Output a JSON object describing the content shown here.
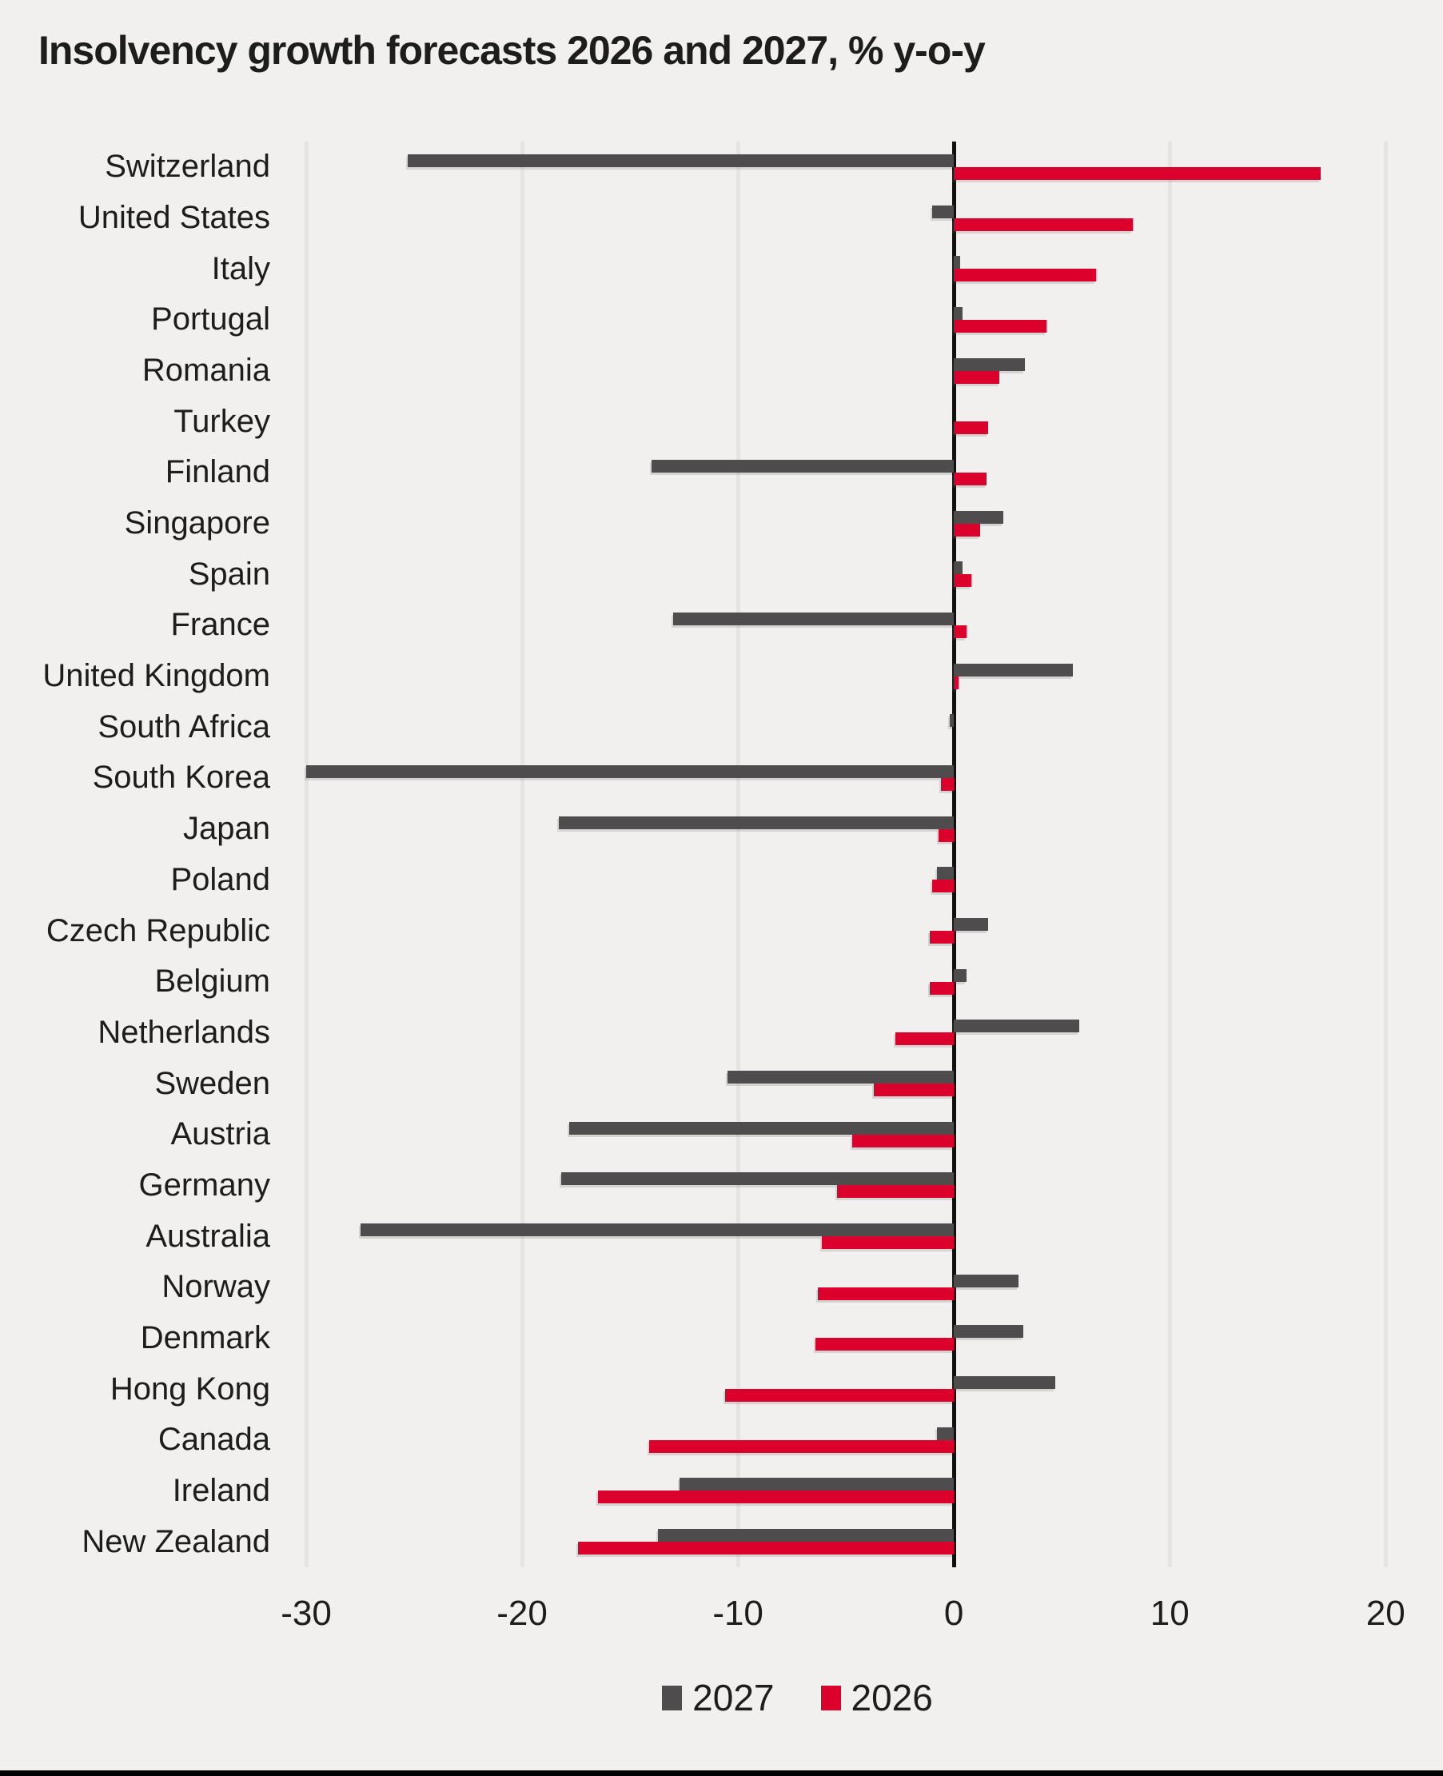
{
  "colors": {
    "background": "#f1f0ee",
    "text": "#1d1d1b",
    "grid": "#e5e4e2",
    "axis": "#111111",
    "bar_2027": "#4f4c4d",
    "bar_2026": "#dc002d",
    "bottom_bar": "#000000"
  },
  "legend": {
    "items": [
      {
        "label": "2027",
        "color": "#4f4c4d"
      },
      {
        "label": "2026",
        "color": "#dc002d"
      }
    ]
  },
  "chart_data": {
    "type": "bar",
    "orientation": "horizontal",
    "title": "Insolvency growth forecasts 2026 and 2027, % y-o-y",
    "categories": [
      "Switzerland",
      "United States",
      "Italy",
      "Portugal",
      "Romania",
      "Turkey",
      "Finland",
      "Singapore",
      "Spain",
      "France",
      "United Kingdom",
      "South Africa",
      "South Korea",
      "Japan",
      "Poland",
      "Czech Republic",
      "Belgium",
      "Netherlands",
      "Sweden",
      "Austria",
      "Germany",
      "Australia",
      "Norway",
      "Denmark",
      "Hong Kong",
      "Canada",
      "Ireland",
      "New Zealand"
    ],
    "series": [
      {
        "name": "2027",
        "color": "#4f4c4d",
        "values": [
          -25.3,
          -1,
          0.3,
          0.4,
          3.3,
          0,
          -14,
          2.3,
          0.4,
          -13,
          5.5,
          -0.2,
          -30,
          -18.3,
          -0.8,
          1.6,
          0.6,
          5.8,
          -10.5,
          -17.8,
          -18.2,
          -27.5,
          3,
          3.2,
          4.7,
          -0.8,
          -12.7,
          -13.7
        ]
      },
      {
        "name": "2026",
        "color": "#dc002d",
        "values": [
          17,
          8.3,
          6.6,
          4.3,
          2.1,
          1.6,
          1.5,
          1.2,
          0.8,
          0.6,
          0.2,
          0,
          -0.6,
          -0.7,
          -1,
          -1.1,
          -1.1,
          -2.7,
          -3.7,
          -4.7,
          -5.4,
          -6.1,
          -6.3,
          -6.4,
          -10.6,
          -14.1,
          -16.5,
          -17.4
        ]
      }
    ],
    "x_ticks": [
      -30,
      -20,
      -10,
      0,
      10,
      20
    ],
    "x_tick_labels": [
      "-30",
      "-20",
      "-10",
      "0",
      "10",
      "20"
    ],
    "xlim": [
      -31,
      22.1
    ],
    "xlabel": "",
    "ylabel": "",
    "grid": "vertical",
    "legend_position": "bottom"
  }
}
